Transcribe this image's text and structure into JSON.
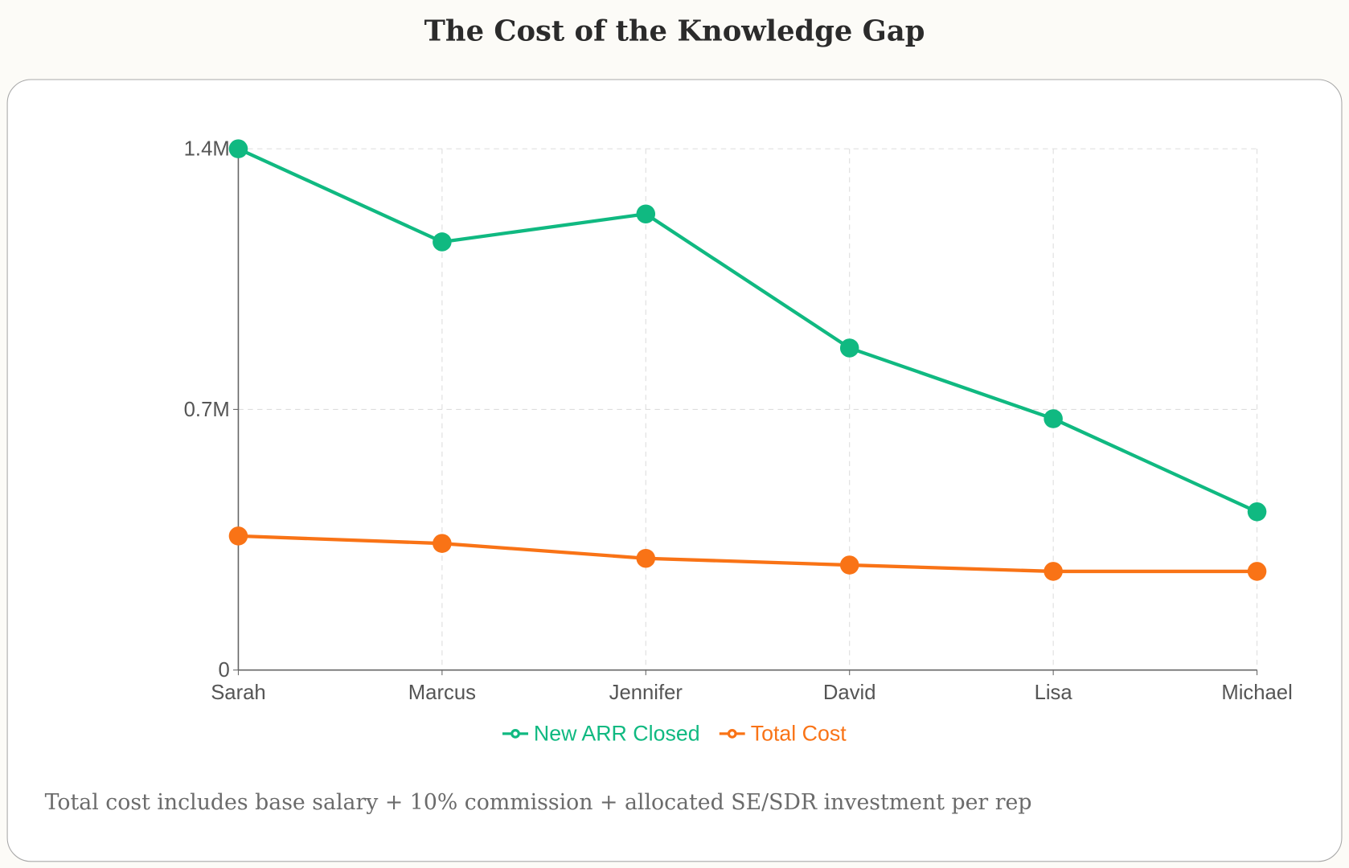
{
  "title": "The Cost of the Knowledge Gap",
  "footnote": "Total cost includes base salary + 10% commission + allocated SE/SDR investment per rep",
  "chart_data": {
    "type": "line",
    "categories": [
      "Sarah",
      "Marcus",
      "Jennifer",
      "David",
      "Lisa",
      "Michael"
    ],
    "series": [
      {
        "name": "New ARR Closed",
        "color": "#10b981",
        "values": [
          1400000,
          1150000,
          1225000,
          865000,
          675000,
          425000
        ]
      },
      {
        "name": "Total Cost",
        "color": "#f97316",
        "values": [
          360000,
          340000,
          300000,
          282000,
          265000,
          265000
        ]
      }
    ],
    "yticks": [
      0,
      700000,
      1400000
    ],
    "ytick_labels": [
      "0",
      "0.7M",
      "1.4M"
    ],
    "ylim": [
      0,
      1400000
    ],
    "grid": true,
    "legend": "bottom"
  }
}
